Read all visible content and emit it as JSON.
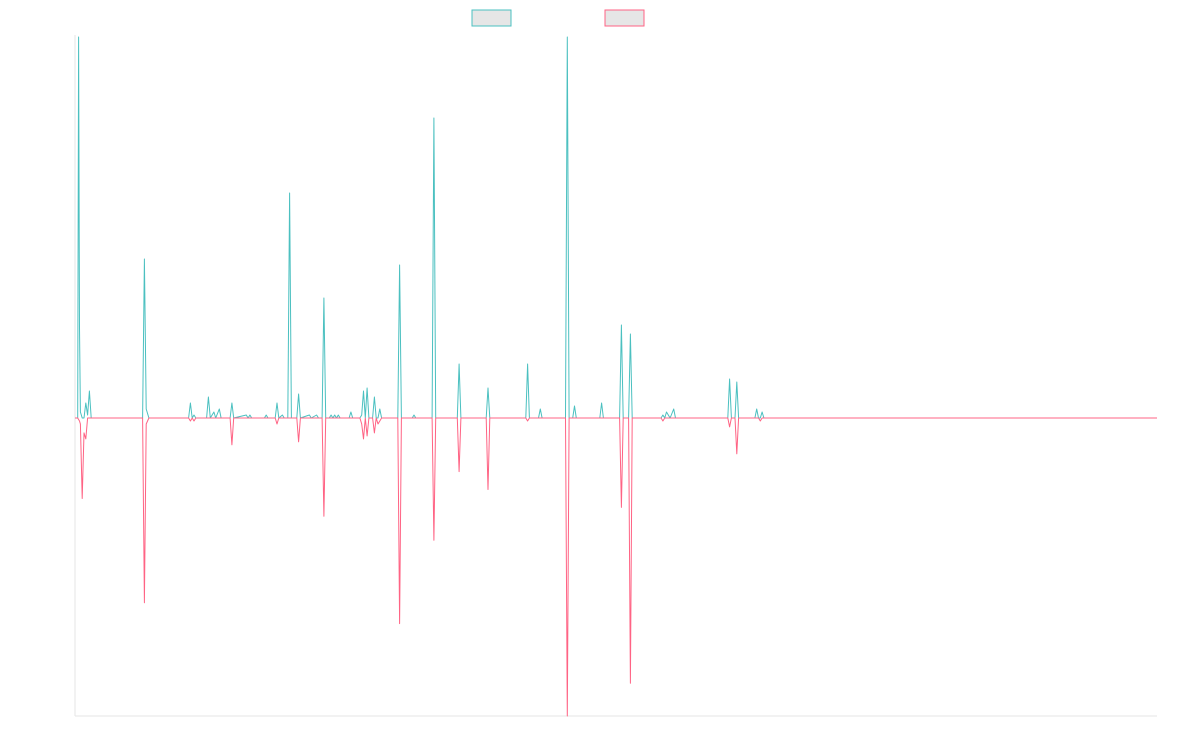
{
  "chart_data": {
    "type": "line",
    "title": "",
    "xlabel": "",
    "ylabel": "",
    "x_range": [
      0,
      1200
    ],
    "ylim": [
      -100,
      127
    ],
    "grid": false,
    "legend_position": "top-center",
    "series": [
      {
        "name": "",
        "color": "#4bc0c0",
        "fill_color": "#e6e6e6",
        "points": [
          [
            0,
            0
          ],
          [
            3,
            0
          ],
          [
            4,
            127
          ],
          [
            5,
            30
          ],
          [
            6,
            2
          ],
          [
            8,
            0
          ],
          [
            10,
            0
          ],
          [
            12,
            5
          ],
          [
            14,
            1
          ],
          [
            16,
            9
          ],
          [
            18,
            0
          ],
          [
            22,
            0
          ],
          [
            40,
            0
          ],
          [
            60,
            0
          ],
          [
            75,
            0
          ],
          [
            77,
            53
          ],
          [
            79,
            3
          ],
          [
            82,
            0
          ],
          [
            100,
            0
          ],
          [
            126,
            0
          ],
          [
            128,
            5
          ],
          [
            130,
            0
          ],
          [
            132,
            1
          ],
          [
            134,
            0
          ],
          [
            146,
            0
          ],
          [
            148,
            7
          ],
          [
            150,
            0
          ],
          [
            154,
            2
          ],
          [
            156,
            0
          ],
          [
            160,
            3
          ],
          [
            162,
            0
          ],
          [
            172,
            0
          ],
          [
            174,
            5
          ],
          [
            176,
            0
          ],
          [
            190,
            1
          ],
          [
            192,
            0
          ],
          [
            194,
            1
          ],
          [
            196,
            0
          ],
          [
            210,
            0
          ],
          [
            212,
            1
          ],
          [
            214,
            0
          ],
          [
            222,
            0
          ],
          [
            224,
            5
          ],
          [
            226,
            0
          ],
          [
            230,
            1
          ],
          [
            232,
            0
          ],
          [
            236,
            0
          ],
          [
            238,
            75
          ],
          [
            240,
            0
          ],
          [
            246,
            0
          ],
          [
            248,
            8
          ],
          [
            250,
            0
          ],
          [
            260,
            1
          ],
          [
            262,
            0
          ],
          [
            268,
            1
          ],
          [
            270,
            0
          ],
          [
            274,
            0
          ],
          [
            276,
            40
          ],
          [
            278,
            0
          ],
          [
            282,
            0
          ],
          [
            284,
            1
          ],
          [
            286,
            0
          ],
          [
            290,
            0
          ],
          [
            288,
            1
          ],
          [
            292,
            1
          ],
          [
            294,
            0
          ],
          [
            304,
            0
          ],
          [
            306,
            2
          ],
          [
            308,
            0
          ],
          [
            316,
            0
          ],
          [
            318,
            1
          ],
          [
            320,
            9
          ],
          [
            322,
            0
          ],
          [
            324,
            10
          ],
          [
            326,
            0
          ],
          [
            330,
            0
          ],
          [
            332,
            7
          ],
          [
            334,
            0
          ],
          [
            336,
            0
          ],
          [
            338,
            3
          ],
          [
            340,
            0
          ],
          [
            358,
            0
          ],
          [
            360,
            51
          ],
          [
            362,
            0
          ],
          [
            374,
            0
          ],
          [
            376,
            1
          ],
          [
            378,
            0
          ],
          [
            388,
            0
          ],
          [
            390,
            0
          ],
          [
            396,
            0
          ],
          [
            398,
            100
          ],
          [
            400,
            0
          ],
          [
            410,
            0
          ],
          [
            412,
            0
          ],
          [
            424,
            0
          ],
          [
            426,
            18
          ],
          [
            428,
            0
          ],
          [
            444,
            0
          ],
          [
            456,
            0
          ],
          [
            458,
            10
          ],
          [
            460,
            0
          ],
          [
            466,
            0
          ],
          [
            470,
            0
          ],
          [
            486,
            0
          ],
          [
            488,
            0
          ],
          [
            500,
            0
          ],
          [
            502,
            18
          ],
          [
            504,
            0
          ],
          [
            514,
            0
          ],
          [
            516,
            3
          ],
          [
            518,
            0
          ],
          [
            528,
            0
          ],
          [
            544,
            0
          ],
          [
            546,
            127
          ],
          [
            548,
            0
          ],
          [
            552,
            0
          ],
          [
            554,
            4
          ],
          [
            556,
            0
          ],
          [
            564,
            0
          ],
          [
            576,
            0
          ],
          [
            582,
            0
          ],
          [
            584,
            5
          ],
          [
            586,
            0
          ],
          [
            596,
            0
          ],
          [
            604,
            0
          ],
          [
            606,
            31
          ],
          [
            608,
            0
          ],
          [
            614,
            0
          ],
          [
            616,
            28
          ],
          [
            618,
            0
          ],
          [
            622,
            0
          ],
          [
            640,
            0
          ],
          [
            650,
            0
          ],
          [
            652,
            1
          ],
          [
            654,
            0
          ],
          [
            656,
            2
          ],
          [
            660,
            0
          ],
          [
            664,
            3
          ],
          [
            666,
            0
          ],
          [
            676,
            0
          ],
          [
            690,
            0
          ],
          [
            712,
            0
          ],
          [
            724,
            0
          ],
          [
            726,
            13
          ],
          [
            728,
            0
          ],
          [
            732,
            0
          ],
          [
            734,
            12
          ],
          [
            736,
            0
          ],
          [
            740,
            0
          ],
          [
            754,
            0
          ],
          [
            756,
            3
          ],
          [
            758,
            0
          ],
          [
            760,
            0
          ],
          [
            762,
            2
          ],
          [
            764,
            0
          ],
          [
            770,
            0
          ],
          [
            790,
            0
          ],
          [
            800,
            0
          ],
          [
            1200,
            0
          ]
        ]
      },
      {
        "name": "",
        "color": "#ff6384",
        "fill_color": "#e6e6e6",
        "points": [
          [
            0,
            0
          ],
          [
            3,
            0
          ],
          [
            5,
            -1
          ],
          [
            6,
            -2
          ],
          [
            8,
            -27
          ],
          [
            10,
            -5
          ],
          [
            12,
            -7
          ],
          [
            14,
            0
          ],
          [
            18,
            0
          ],
          [
            22,
            0
          ],
          [
            75,
            0
          ],
          [
            77,
            -62
          ],
          [
            79,
            -2
          ],
          [
            82,
            0
          ],
          [
            100,
            0
          ],
          [
            126,
            0
          ],
          [
            128,
            -1
          ],
          [
            130,
            0
          ],
          [
            132,
            -1
          ],
          [
            134,
            0
          ],
          [
            146,
            0
          ],
          [
            148,
            0
          ],
          [
            150,
            0
          ],
          [
            160,
            0
          ],
          [
            162,
            0
          ],
          [
            172,
            0
          ],
          [
            174,
            -9
          ],
          [
            176,
            0
          ],
          [
            190,
            0
          ],
          [
            196,
            0
          ],
          [
            210,
            0
          ],
          [
            214,
            0
          ],
          [
            222,
            0
          ],
          [
            224,
            -2
          ],
          [
            226,
            0
          ],
          [
            230,
            0
          ],
          [
            232,
            0
          ],
          [
            236,
            0
          ],
          [
            238,
            0
          ],
          [
            240,
            0
          ],
          [
            246,
            0
          ],
          [
            248,
            -8
          ],
          [
            250,
            0
          ],
          [
            260,
            0
          ],
          [
            268,
            0
          ],
          [
            270,
            0
          ],
          [
            274,
            0
          ],
          [
            276,
            -33
          ],
          [
            278,
            0
          ],
          [
            282,
            0
          ],
          [
            290,
            0
          ],
          [
            294,
            0
          ],
          [
            306,
            0
          ],
          [
            308,
            0
          ],
          [
            316,
            0
          ],
          [
            318,
            -2
          ],
          [
            320,
            -7
          ],
          [
            322,
            0
          ],
          [
            324,
            -6
          ],
          [
            326,
            0
          ],
          [
            330,
            0
          ],
          [
            332,
            -5
          ],
          [
            334,
            0
          ],
          [
            336,
            -2
          ],
          [
            338,
            -1
          ],
          [
            340,
            0
          ],
          [
            358,
            0
          ],
          [
            360,
            -69
          ],
          [
            362,
            0
          ],
          [
            374,
            0
          ],
          [
            378,
            0
          ],
          [
            396,
            0
          ],
          [
            398,
            -41
          ],
          [
            400,
            0
          ],
          [
            410,
            0
          ],
          [
            424,
            0
          ],
          [
            426,
            -18
          ],
          [
            428,
            0
          ],
          [
            444,
            0
          ],
          [
            456,
            0
          ],
          [
            458,
            -24
          ],
          [
            460,
            0
          ],
          [
            466,
            0
          ],
          [
            500,
            0
          ],
          [
            502,
            -1
          ],
          [
            504,
            0
          ],
          [
            514,
            0
          ],
          [
            528,
            0
          ],
          [
            544,
            0
          ],
          [
            546,
            -100
          ],
          [
            548,
            0
          ],
          [
            552,
            0
          ],
          [
            556,
            0
          ],
          [
            604,
            0
          ],
          [
            606,
            -30
          ],
          [
            608,
            0
          ],
          [
            614,
            0
          ],
          [
            616,
            -89
          ],
          [
            618,
            0
          ],
          [
            622,
            0
          ],
          [
            640,
            0
          ],
          [
            650,
            0
          ],
          [
            652,
            -1
          ],
          [
            654,
            0
          ],
          [
            660,
            0
          ],
          [
            666,
            0
          ],
          [
            676,
            0
          ],
          [
            712,
            0
          ],
          [
            724,
            0
          ],
          [
            726,
            -3
          ],
          [
            728,
            0
          ],
          [
            732,
            0
          ],
          [
            734,
            -12
          ],
          [
            736,
            0
          ],
          [
            740,
            0
          ],
          [
            754,
            0
          ],
          [
            756,
            0
          ],
          [
            758,
            0
          ],
          [
            760,
            -1
          ],
          [
            762,
            0
          ],
          [
            764,
            0
          ],
          [
            770,
            0
          ],
          [
            790,
            0
          ],
          [
            1200,
            0
          ]
        ]
      }
    ]
  }
}
